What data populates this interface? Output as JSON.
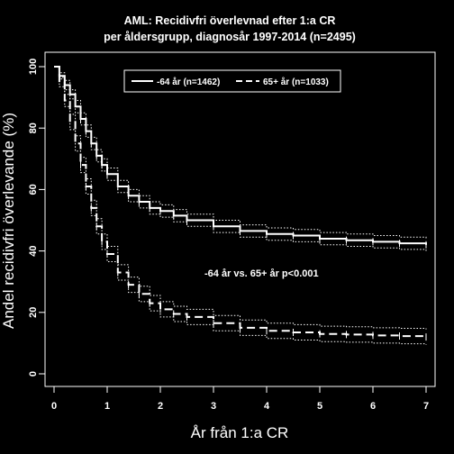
{
  "chart_data": {
    "type": "line",
    "title_line1": "AML: Recidivfri överlevnad efter 1:a CR",
    "title_line2": "per åldersgrupp, diagnosår 1997-2014 (n=2495)",
    "xlabel": "År från 1:a CR",
    "ylabel": "Andel recidivfri överlevande (%)",
    "xlim": [
      0,
      7
    ],
    "ylim": [
      0,
      100
    ],
    "xticks": [
      "0",
      "1",
      "2",
      "3",
      "4",
      "5",
      "6",
      "7"
    ],
    "yticks": [
      "0",
      "20",
      "40",
      "60",
      "80",
      "100"
    ],
    "grid": false,
    "legend_position": "top-center",
    "annotation": "-64 år vs. 65+ år p<0.001",
    "colors": {
      "background": "#000000",
      "line": "#ffffff"
    },
    "series": [
      {
        "name": "-64 år (n=1462)",
        "style": "solid",
        "x": [
          0,
          0.1,
          0.2,
          0.3,
          0.4,
          0.5,
          0.6,
          0.7,
          0.8,
          0.9,
          1.0,
          1.2,
          1.4,
          1.6,
          1.8,
          2.0,
          2.25,
          2.5,
          3.0,
          3.5,
          4.0,
          4.5,
          5.0,
          5.5,
          6.0,
          6.5,
          7.0
        ],
        "values": [
          100,
          97,
          94,
          91,
          87,
          83,
          79,
          75,
          71,
          68,
          65,
          61,
          58,
          56,
          54,
          53,
          51.5,
          50,
          48,
          46.5,
          45.5,
          45,
          44,
          43.5,
          43,
          42.5,
          42
        ],
        "ci_upper": [
          100,
          98,
          95.5,
          92.5,
          89,
          85,
          81,
          77,
          73,
          70,
          67,
          63,
          60,
          58,
          56,
          55,
          53.5,
          52,
          50,
          48.5,
          47.5,
          47,
          46,
          45.5,
          45,
          44.5,
          44
        ],
        "ci_lower": [
          100,
          96,
          92.5,
          89.5,
          85,
          81,
          77,
          73,
          69,
          66,
          63,
          59,
          56,
          54,
          52,
          51,
          49.5,
          48,
          46,
          44.5,
          43.5,
          43,
          42,
          41.5,
          41,
          40.5,
          40
        ]
      },
      {
        "name": "65+ år (n=1033)",
        "style": "dashed",
        "x": [
          0,
          0.1,
          0.2,
          0.3,
          0.4,
          0.5,
          0.6,
          0.7,
          0.8,
          0.9,
          1.0,
          1.2,
          1.4,
          1.6,
          1.8,
          2.0,
          2.25,
          2.5,
          3.0,
          3.5,
          4.0,
          4.5,
          5.0,
          5.5,
          6.0,
          6.5,
          7.0
        ],
        "values": [
          100,
          95,
          89,
          82,
          75,
          68,
          61,
          54,
          48,
          43,
          39,
          33,
          29,
          26,
          23,
          21,
          19.5,
          18.5,
          16.5,
          15,
          14,
          13.5,
          13,
          12.8,
          12.5,
          12.3,
          12
        ],
        "ci_upper": [
          100,
          96.5,
          91,
          84.5,
          77.5,
          70.5,
          63.5,
          56.5,
          50.5,
          45.5,
          41.5,
          35.5,
          31.5,
          28.5,
          25.5,
          23.5,
          22,
          21,
          19,
          17.5,
          16.5,
          16,
          15.5,
          15.3,
          15,
          14.8,
          14.5
        ],
        "ci_lower": [
          100,
          93.5,
          87,
          79.5,
          72.5,
          65.5,
          58.5,
          51.5,
          45.5,
          40.5,
          36.5,
          30.5,
          26.5,
          23.5,
          20.5,
          18.5,
          17,
          16,
          14,
          12.5,
          11.5,
          11,
          10.5,
          10.3,
          10,
          9.8,
          9.5
        ]
      }
    ]
  }
}
